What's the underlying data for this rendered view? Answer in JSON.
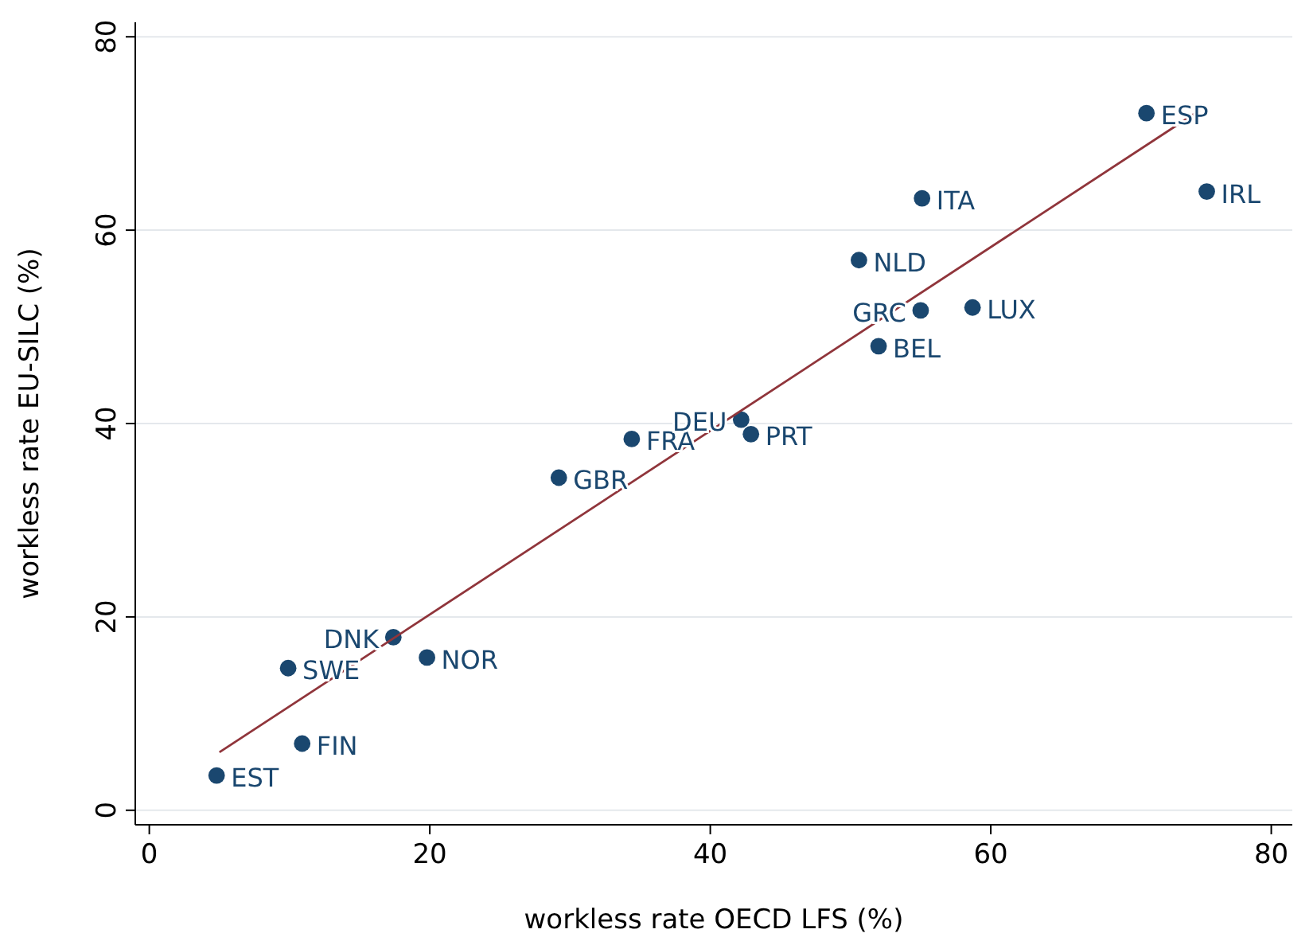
{
  "chart_data": {
    "type": "scatter",
    "xlabel": "workless rate OECD LFS (%)",
    "ylabel": "workless rate EU-SILC (%)",
    "xlim": [
      -1,
      81.5
    ],
    "xticks": [
      0,
      20,
      40,
      60,
      80
    ],
    "ylim": [
      -1.5,
      81.5
    ],
    "yticks": [
      0,
      20,
      40,
      60,
      80
    ],
    "grid": "y",
    "series": [
      {
        "type": "scatter",
        "marker": "circle",
        "color": "#1a476f",
        "x": [
          4.8,
          10.9,
          9.9,
          17.4,
          19.8,
          29.2,
          34.4,
          42.2,
          42.9,
          52.0,
          55.0,
          58.7,
          50.6,
          55.1,
          75.4,
          71.1
        ],
        "values": [
          3.6,
          6.9,
          14.7,
          17.9,
          15.8,
          34.4,
          38.4,
          40.4,
          38.9,
          48.0,
          51.7,
          52.0,
          56.9,
          63.3,
          64.0,
          72.1
        ]
      },
      {
        "type": "line",
        "color": "#90353b",
        "x": [
          5.0,
          74.9
        ],
        "values": [
          6.0,
          72.4
        ]
      }
    ],
    "annotations": [
      {
        "text": "EST",
        "x": 4.8,
        "y": 3.6
      },
      {
        "text": "FIN",
        "x": 10.9,
        "y": 6.9
      },
      {
        "text": "SWE",
        "x": 9.9,
        "y": 14.7
      },
      {
        "text": "DNK",
        "x": 17.4,
        "y": 17.9
      },
      {
        "text": "NOR",
        "x": 19.8,
        "y": 15.8
      },
      {
        "text": "GBR",
        "x": 29.2,
        "y": 34.4
      },
      {
        "text": "FRA",
        "x": 34.4,
        "y": 38.4
      },
      {
        "text": "DEU",
        "x": 42.2,
        "y": 40.4
      },
      {
        "text": "PRT",
        "x": 42.9,
        "y": 38.9
      },
      {
        "text": "BEL",
        "x": 52.0,
        "y": 48.0
      },
      {
        "text": "GRC",
        "x": 55.0,
        "y": 51.7
      },
      {
        "text": "LUX",
        "x": 58.7,
        "y": 52.0
      },
      {
        "text": "NLD",
        "x": 50.6,
        "y": 56.9
      },
      {
        "text": "ITA",
        "x": 55.1,
        "y": 63.3
      },
      {
        "text": "IRL",
        "x": 75.4,
        "y": 64.0
      },
      {
        "text": "ESP",
        "x": 71.1,
        "y": 72.1
      }
    ]
  }
}
